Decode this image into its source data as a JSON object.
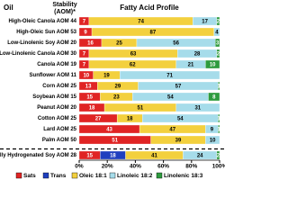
{
  "chart_data": {
    "type": "stacked-bar-horizontal",
    "header_oil": "Oil",
    "header_stability_1": "Stability",
    "header_stability_2": "(AOM)*",
    "title": "Fatty Acid Profile",
    "categories": [
      "High-Oleic Canola AOM 44",
      "High-Oleic Sun AOM 53",
      "Low-Linolenic Soy AOM 20",
      "Low-Linolenic Canola AOM 30",
      "Canola AOM 19",
      "Sunflower AOM 11",
      "Corn AOM 25",
      "Soybean AOM 15",
      "Peanut AOM 20",
      "Cotton AOM 25",
      "Lard AOM 25",
      "Palm AOM 50",
      "Partially Hydrogenated Soy AOM 28"
    ],
    "series": [
      {
        "name": "Sats",
        "color": "#e02424",
        "values": [
          7,
          9,
          16,
          7,
          7,
          10,
          13,
          15,
          18,
          27,
          43,
          51,
          15
        ]
      },
      {
        "name": "Trans",
        "color": "#1f3fbf",
        "values": [
          0,
          0,
          0,
          0,
          0,
          0,
          0,
          0,
          0,
          0,
          0,
          0,
          18
        ]
      },
      {
        "name": "Oleic 18:1",
        "color": "#f3d03e",
        "values": [
          74,
          87,
          25,
          63,
          62,
          19,
          29,
          23,
          51,
          18,
          47,
          39,
          41
        ]
      },
      {
        "name": "Linoleic 18:2",
        "color": "#a6dcea",
        "values": [
          17,
          4,
          56,
          28,
          21,
          71,
          57,
          54,
          31,
          54,
          9,
          10,
          24
        ]
      },
      {
        "name": "Linolenic 18:3",
        "color": "#2e9b3e",
        "values": [
          2,
          0,
          3,
          2,
          10,
          0,
          1,
          8,
          0,
          1,
          1,
          0,
          2
        ]
      }
    ],
    "xlim": [
      0,
      100
    ],
    "xticks": [
      {
        "value": 0,
        "label": "0%"
      },
      {
        "value": 20,
        "label": "20%"
      },
      {
        "value": 40,
        "label": "40%"
      },
      {
        "value": 60,
        "label": "60%"
      },
      {
        "value": 80,
        "label": "80%"
      },
      {
        "value": 100,
        "label": "100%"
      }
    ]
  }
}
